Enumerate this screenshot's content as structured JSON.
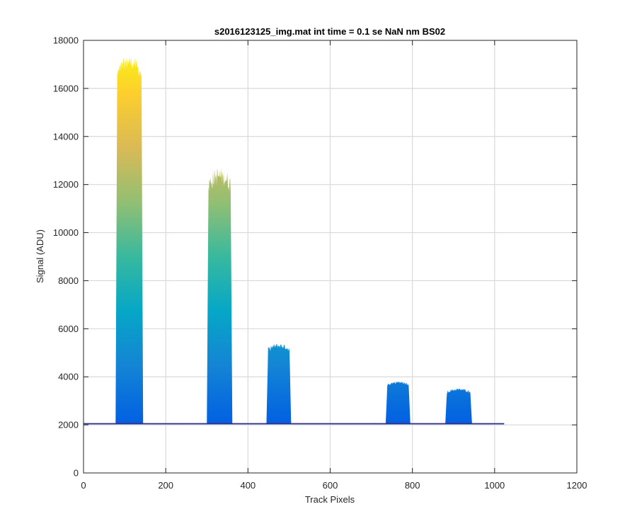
{
  "chart_data": {
    "type": "area",
    "title": "s2016123125_img.mat int time = 0.1 se  NaN nm BS02",
    "xlabel": "Track Pixels",
    "ylabel": "Signal (ADU)",
    "xlim": [
      0,
      1200
    ],
    "ylim": [
      0,
      18000
    ],
    "xticks": [
      0,
      200,
      400,
      600,
      800,
      1000,
      1200
    ],
    "yticks": [
      0,
      2000,
      4000,
      6000,
      8000,
      10000,
      12000,
      14000,
      16000,
      18000
    ],
    "grid": true,
    "colormap": "parula",
    "colormap_stops": [
      "#352a87",
      "#0363e1",
      "#1485d4",
      "#06a7c6",
      "#38b99e",
      "#92bf73",
      "#d9ba56",
      "#fcce2e",
      "#f9fb0e"
    ],
    "baseline": 2050,
    "track_range": [
      0,
      1023
    ],
    "peaks": [
      {
        "start": 78,
        "end": 145,
        "max": 17500,
        "plateau": 17000
      },
      {
        "start": 300,
        "end": 362,
        "max": 12900,
        "plateau": 12200
      },
      {
        "start": 445,
        "end": 505,
        "max": 5450,
        "plateau": 5250
      },
      {
        "start": 735,
        "end": 795,
        "max": 3850,
        "plateau": 3750
      },
      {
        "start": 880,
        "end": 945,
        "max": 3550,
        "plateau": 3450
      }
    ]
  }
}
